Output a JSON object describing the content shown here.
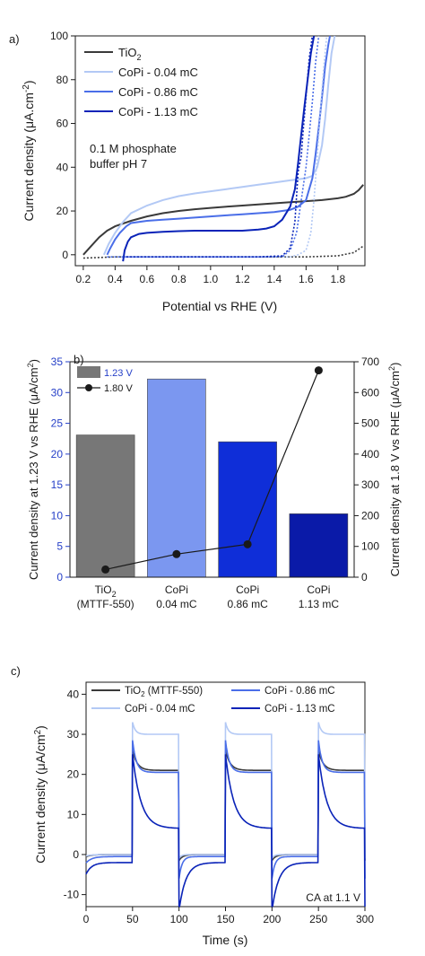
{
  "colors": {
    "tio2": "#3a3a3a",
    "cp004": "#b3c9f5",
    "cp086": "#4a6ee8",
    "cp113": "#0a23b8",
    "bar_tio2": "#777777",
    "bar_004": "#7b97f0",
    "bar_086": "#0f2ed8",
    "bar_113": "#0a1aa8",
    "right_line": "#1a1a1a",
    "axis_right_tick_blue": "#2640c8"
  },
  "chart_data": [
    {
      "panel": "a)",
      "type": "line",
      "xlabel": "Potential vs RHE (V)",
      "ylabel": "Current density (µA.cm⁻²)",
      "xlim": [
        0.15,
        1.97
      ],
      "ylim": [
        -5,
        100
      ],
      "xticks": [
        "0.2",
        "0.4",
        "0.6",
        "0.8",
        "1.0",
        "1.2",
        "1.4",
        "1.6",
        "1.8"
      ],
      "xtick_values": [
        0.2,
        0.4,
        0.6,
        0.8,
        1.0,
        1.2,
        1.4,
        1.6,
        1.8
      ],
      "yticks": [
        "0",
        "20",
        "40",
        "60",
        "80",
        "100"
      ],
      "ytick_values": [
        0,
        20,
        40,
        60,
        80,
        100
      ],
      "annotation": [
        "0.1 M phosphate",
        "buffer pH 7"
      ],
      "legend": [
        "TiO2",
        "CoPi - 0.04 mC",
        "CoPi - 0.86 mC",
        "CoPi - 1.13 mC"
      ],
      "series": [
        {
          "name": "TiO2",
          "color_key": "tio2",
          "dashed": false,
          "x": [
            0.2,
            0.25,
            0.3,
            0.35,
            0.4,
            0.5,
            0.6,
            0.7,
            0.8,
            0.9,
            1.0,
            1.1,
            1.2,
            1.3,
            1.4,
            1.5,
            1.6,
            1.7,
            1.8,
            1.85,
            1.9,
            1.93,
            1.96
          ],
          "y": [
            0,
            4,
            8,
            11,
            13,
            15.5,
            17.5,
            19,
            20,
            20.8,
            21.4,
            22,
            22.5,
            23,
            23.5,
            24,
            24.5,
            25,
            25.8,
            26.5,
            27.8,
            29.5,
            32
          ]
        },
        {
          "name": "CoPi - 0.04 mC",
          "color_key": "cp004",
          "dashed": false,
          "x": [
            0.33,
            0.36,
            0.4,
            0.45,
            0.5,
            0.6,
            0.7,
            0.8,
            0.9,
            1.0,
            1.1,
            1.2,
            1.3,
            1.4,
            1.5,
            1.55,
            1.6,
            1.64,
            1.67,
            1.7,
            1.72,
            1.74,
            1.76,
            1.78
          ],
          "y": [
            0,
            5,
            10,
            15,
            19,
            22.5,
            25,
            26.8,
            28,
            29,
            30,
            31,
            32,
            33,
            34,
            34.5,
            35,
            36,
            40,
            50,
            62,
            78,
            92,
            100
          ]
        },
        {
          "name": "CoPi - 0.86 mC",
          "color_key": "cp086",
          "dashed": false,
          "x": [
            0.35,
            0.37,
            0.4,
            0.43,
            0.47,
            0.5,
            0.6,
            0.7,
            0.8,
            0.9,
            1.0,
            1.1,
            1.2,
            1.3,
            1.4,
            1.5,
            1.55,
            1.6,
            1.64,
            1.66,
            1.68,
            1.7,
            1.72,
            1.74,
            1.75
          ],
          "y": [
            0,
            3,
            7,
            10,
            13,
            14.5,
            15.5,
            16,
            16.5,
            17,
            17.5,
            18,
            18.5,
            19,
            19.5,
            20.5,
            22,
            25,
            35,
            46,
            58,
            72,
            86,
            96,
            100
          ]
        },
        {
          "name": "CoPi - 1.13 mC",
          "color_key": "cp113",
          "dashed": false,
          "x": [
            0.45,
            0.46,
            0.48,
            0.5,
            0.55,
            0.6,
            0.7,
            0.8,
            0.9,
            1.0,
            1.1,
            1.2,
            1.3,
            1.35,
            1.4,
            1.45,
            1.5,
            1.53,
            1.55,
            1.57,
            1.59,
            1.61,
            1.63,
            1.65
          ],
          "y": [
            -3,
            2,
            6,
            8,
            9.5,
            10,
            10.5,
            10.8,
            11,
            11,
            11,
            11,
            11.5,
            12,
            13,
            16,
            22,
            30,
            42,
            55,
            68,
            80,
            92,
            100
          ]
        },
        {
          "name": "TiO2 dark",
          "color_key": "tio2",
          "dashed": true,
          "x": [
            0.2,
            0.4,
            0.6,
            0.8,
            1.0,
            1.2,
            1.4,
            1.6,
            1.8,
            1.9,
            1.96
          ],
          "y": [
            -1.5,
            -1,
            -1,
            -1,
            -1,
            -1,
            -1,
            -1,
            -0.5,
            1,
            4
          ]
        },
        {
          "name": "CoPi - 0.04 mC dark",
          "color_key": "cp004",
          "dashed": true,
          "x": [
            0.35,
            0.6,
            0.9,
            1.2,
            1.5,
            1.55,
            1.6,
            1.63,
            1.65,
            1.67,
            1.69,
            1.71,
            1.73
          ],
          "y": [
            -1,
            -1,
            -1,
            -1,
            -1,
            0,
            2,
            10,
            25,
            45,
            65,
            85,
            100
          ]
        },
        {
          "name": "CoPi - 0.86 mC dark",
          "color_key": "cp086",
          "dashed": true,
          "x": [
            0.35,
            0.6,
            0.9,
            1.2,
            1.45,
            1.5,
            1.54,
            1.57,
            1.6,
            1.62,
            1.64,
            1.66,
            1.68
          ],
          "y": [
            -1,
            -1,
            -1,
            -1,
            -1,
            2,
            10,
            25,
            40,
            55,
            70,
            88,
            100
          ]
        },
        {
          "name": "CoPi - 1.13 mC dark",
          "color_key": "cp113",
          "dashed": true,
          "x": [
            0.45,
            0.7,
            1.0,
            1.3,
            1.45,
            1.5,
            1.53,
            1.55,
            1.57,
            1.58,
            1.6,
            1.62,
            1.64
          ],
          "y": [
            -1,
            -1,
            -1,
            -1,
            -0.5,
            3,
            15,
            38,
            45,
            55,
            72,
            90,
            100
          ]
        }
      ]
    },
    {
      "panel": "b)",
      "type": "bar",
      "categories": [
        [
          "TiO",
          "(MTTF-550)"
        ],
        [
          "CoPi",
          "0.04 mC"
        ],
        [
          "CoPi",
          "0.86 mC"
        ],
        [
          "CoPi",
          "1.13 mC"
        ]
      ],
      "category_subscript": [
        "2",
        "",
        "",
        ""
      ],
      "values": [
        23.1,
        32.2,
        22.0,
        10.3
      ],
      "bar_color_keys": [
        "bar_tio2",
        "bar_004",
        "bar_086",
        "bar_113"
      ],
      "ylabel": "Current density at 1.23 V vs RHE (µA/cm²)",
      "y2label": "Current density at 1.8 V vs RHE (µA/cm²)",
      "ylim": [
        0,
        35
      ],
      "y2lim": [
        0,
        700
      ],
      "yticks": [
        "0",
        "5",
        "10",
        "15",
        "20",
        "25",
        "30",
        "35"
      ],
      "ytick_values": [
        0,
        5,
        10,
        15,
        20,
        25,
        30,
        35
      ],
      "y2ticks": [
        "0",
        "100",
        "200",
        "300",
        "400",
        "500",
        "600",
        "700"
      ],
      "y2tick_values": [
        0,
        100,
        200,
        300,
        400,
        500,
        600,
        700
      ],
      "line_series": {
        "name": "1.80 V",
        "values": [
          25,
          75,
          107,
          672
        ]
      },
      "legend": [
        "1.23 V",
        "1.80 V"
      ]
    },
    {
      "panel": "c)",
      "type": "line",
      "xlabel": "Time (s)",
      "ylabel": "Current density (µA/cm²)",
      "xlim": [
        0,
        300
      ],
      "ylim": [
        -13,
        43
      ],
      "xticks": [
        "0",
        "50",
        "100",
        "150",
        "200",
        "250",
        "300"
      ],
      "xtick_values": [
        0,
        50,
        100,
        150,
        200,
        250,
        300
      ],
      "yticks": [
        "-10",
        "0",
        "10",
        "20",
        "30",
        "40"
      ],
      "ytick_values": [
        -10,
        0,
        10,
        20,
        30,
        40
      ],
      "annotation": "CA at 1.1 V",
      "legend": [
        "TiO2 (MTTF-550)",
        "CoPi - 0.04 mC",
        "CoPi - 0.86 mC",
        "CoPi - 1.13 mC"
      ],
      "chopped": [
        {
          "name": "TiO2 (MTTF-550)",
          "color_key": "tio2",
          "dark": 0,
          "spike": 26,
          "steady": 21,
          "tau": 5,
          "neg": -1.5
        },
        {
          "name": "CoPi - 0.04 mC",
          "color_key": "cp004",
          "dark": 0,
          "spike": 33,
          "steady": 30,
          "tau": 3,
          "neg": -1
        },
        {
          "name": "CoPi - 0.86 mC",
          "color_key": "cp086",
          "dark": -0.5,
          "spike": 28.5,
          "steady": 20.5,
          "tau": 4,
          "neg": -6
        },
        {
          "name": "CoPi - 1.13 mC",
          "color_key": "cp113",
          "dark": -2,
          "spike": 25,
          "steady": 6.5,
          "tau": 9,
          "neg": -14
        }
      ],
      "on_windows": [
        [
          50,
          100
        ],
        [
          150,
          200
        ],
        [
          250,
          300
        ]
      ]
    }
  ]
}
